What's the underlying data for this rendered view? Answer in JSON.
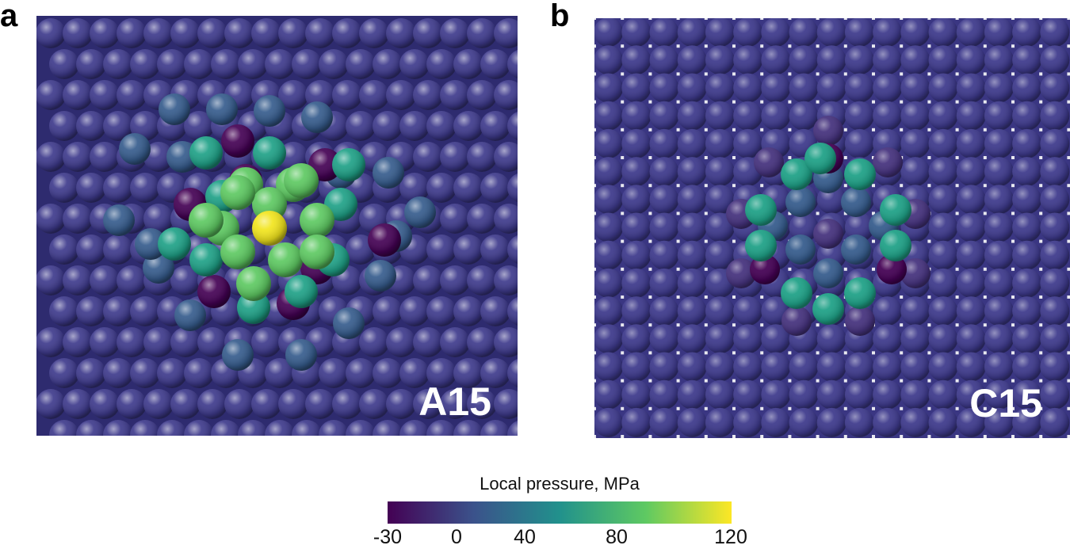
{
  "panels": [
    {
      "letter": "a",
      "structure": "A15"
    },
    {
      "letter": "b",
      "structure": "C15"
    }
  ],
  "colorbar": {
    "title": "Local pressure, MPa",
    "min": -30,
    "max": 120,
    "ticks": [
      "-30",
      "0",
      "40",
      "80",
      "120"
    ],
    "tick_values": [
      -30,
      0,
      40,
      80,
      120
    ],
    "colormap": "viridis",
    "stops": [
      "#440154",
      "#3b528b",
      "#21918c",
      "#5ec962",
      "#fde725"
    ]
  },
  "colors": {
    "background_atom": "#3e3a8c",
    "atom_dark": "#440154",
    "atom_purple": "#46337e",
    "atom_blue": "#365c8d",
    "atom_teal": "#1fa187",
    "atom_green": "#5ec962",
    "atom_yellow": "#f2e51d"
  }
}
